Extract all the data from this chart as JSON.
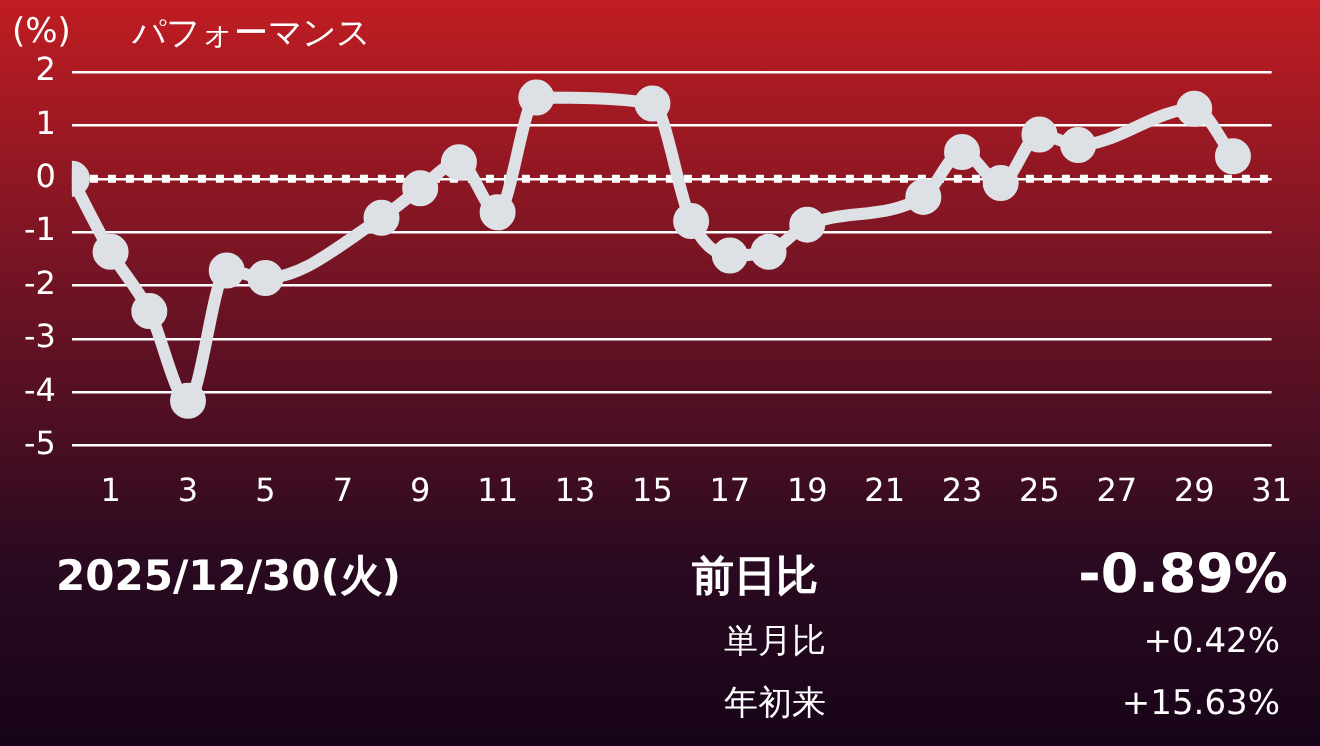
{
  "chart_data": {
    "type": "line",
    "title": "パフォーマンス",
    "ylabel": "(%)",
    "x": [
      0,
      1,
      2,
      3,
      4,
      5,
      8,
      9,
      10,
      11,
      12,
      15,
      16,
      17,
      18,
      19,
      22,
      23,
      24,
      25,
      26,
      29,
      30
    ],
    "series": [
      {
        "color": "#dde0e4",
        "values": [
          0,
          -1.37,
          -2.48,
          -4.16,
          -1.72,
          -1.86,
          -0.73,
          -0.18,
          0.31,
          -0.63,
          1.52,
          1.41,
          -0.79,
          -1.44,
          -1.37,
          -0.86,
          -0.34,
          0.5,
          -0.08,
          0.83,
          0.63,
          1.31,
          0.42
        ]
      }
    ],
    "xlim": [
      0,
      31
    ],
    "xticks": [
      1,
      3,
      5,
      7,
      9,
      11,
      13,
      15,
      17,
      19,
      21,
      23,
      25,
      27,
      29,
      31
    ],
    "ylim": [
      -5,
      2
    ],
    "yticks": [
      -5,
      -4,
      -3,
      -2,
      -1,
      0,
      1,
      2
    ],
    "grid": "y",
    "legend": false,
    "marker": "circle",
    "line_style": "solid",
    "ref_lines": [
      {
        "axis": "y",
        "value": 0,
        "color": "#ffffff",
        "line_style": "dotted"
      }
    ],
    "annotations": [
      "2025/12/30(火)",
      "前日比",
      "-0.89%",
      "単月比",
      "+0.42%",
      "年初来",
      "+15.63%"
    ]
  }
}
